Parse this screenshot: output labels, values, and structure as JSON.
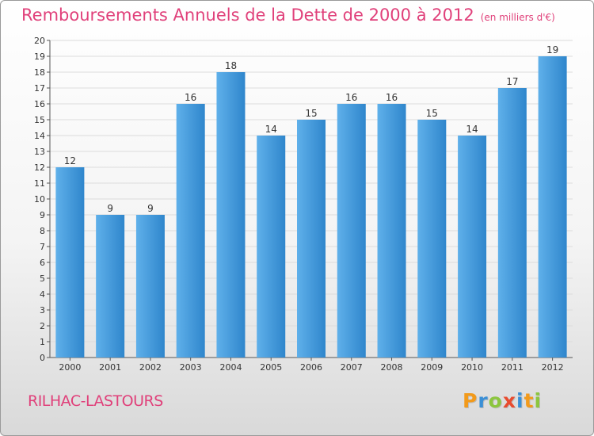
{
  "title": "Remboursements Annuels de la Dette de 2000 à 2012",
  "subtitle": "(en milliers d'€)",
  "commune": "RILHAC-LASTOURS",
  "logo": {
    "letters": [
      {
        "char": "P",
        "color": "#f29a1b"
      },
      {
        "char": "r",
        "color": "#3a8fd6"
      },
      {
        "char": "o",
        "color": "#8cc63e"
      },
      {
        "char": "x",
        "color": "#e84b2e"
      },
      {
        "char": "i",
        "color": "#3a8fd6"
      },
      {
        "char": "t",
        "color": "#f29a1b"
      },
      {
        "char": "i",
        "color": "#8cc63e"
      }
    ]
  },
  "chart_data": {
    "type": "bar",
    "title": "Remboursements Annuels de la Dette de 2000 à 2012",
    "subtitle": "(en milliers d'€)",
    "categories": [
      "2000",
      "2001",
      "2002",
      "2003",
      "2004",
      "2005",
      "2006",
      "2007",
      "2008",
      "2009",
      "2010",
      "2011",
      "2012"
    ],
    "values": [
      12,
      9,
      9,
      16,
      18,
      14,
      15,
      16,
      16,
      15,
      14,
      17,
      19
    ],
    "ylim": [
      0,
      20
    ],
    "yticks": [
      "0",
      "1",
      "2",
      "3",
      "4",
      "5",
      "6",
      "7",
      "8",
      "9",
      "10",
      "11",
      "12",
      "13",
      "14",
      "15",
      "16",
      "17",
      "18",
      "19",
      "20"
    ],
    "grid": true,
    "bar_color": "#3a94d8",
    "bar_color_light": "#5fb0ea"
  }
}
